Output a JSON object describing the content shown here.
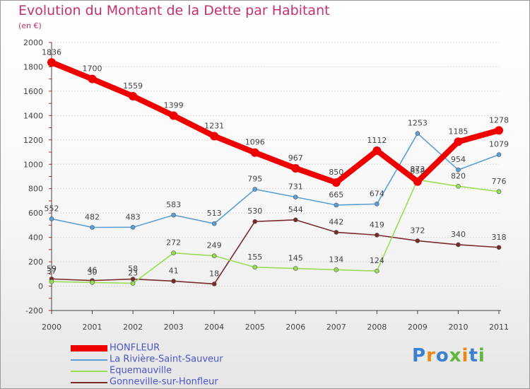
{
  "chart_data": {
    "type": "line",
    "title": "Evolution du Montant de la Dette par Habitant",
    "subtitle": "(en €)",
    "x": [
      "2000",
      "2001",
      "2002",
      "2003",
      "2004",
      "2005",
      "2006",
      "2007",
      "2008",
      "2009",
      "2010",
      "2011"
    ],
    "ylim": [
      -200,
      2000
    ],
    "yticks": [
      "-200",
      "0",
      "200",
      "400",
      "600",
      "800",
      "1000",
      "1200",
      "1400",
      "1600",
      "1800",
      "2000"
    ],
    "grid": "horizontal",
    "legend_position": "bottom-left",
    "series": [
      {
        "name": "HONFLEUR",
        "color": "#ee0000",
        "values": [
          1836,
          1700,
          1559,
          1399,
          1231,
          1096,
          967,
          850,
          1112,
          858,
          1185,
          1278
        ],
        "labels": [
          "1836",
          "1700",
          "1559",
          "1399",
          "1231",
          "1096",
          "967",
          "850",
          "1112",
          "858",
          "1185",
          "1278"
        ]
      },
      {
        "name": "La Rivière-Saint-Sauveur",
        "color": "#5b9fd4",
        "values": [
          552,
          482,
          483,
          583,
          513,
          795,
          731,
          665,
          674,
          1253,
          954,
          1079
        ],
        "labels": [
          "552",
          "482",
          "483",
          "583",
          "513",
          "795",
          "731",
          "665",
          "674",
          "1253",
          "954",
          "1079"
        ]
      },
      {
        "name": "Equemauville",
        "color": "#99dd55",
        "values": [
          37,
          30,
          23,
          272,
          249,
          155,
          145,
          134,
          124,
          873,
          820,
          776
        ],
        "labels": [
          "37",
          "30",
          "23",
          "272",
          "249",
          "155",
          "145",
          "134",
          "124",
          "873",
          "820",
          "776"
        ]
      },
      {
        "name": "Gonneville-sur-Honfleur",
        "color": "#7a2a2a",
        "values": [
          59,
          46,
          58,
          41,
          18,
          530,
          544,
          442,
          419,
          372,
          340,
          318
        ],
        "labels": [
          "59",
          "46",
          "58",
          "41",
          "18",
          "530",
          "544",
          "442",
          "419",
          "372",
          "340",
          "318"
        ]
      }
    ]
  },
  "logo": {
    "text": "Proxiti",
    "colors": [
      "#3a7fd0",
      "#e88a1a",
      "#3a7fd0",
      "#5fb83a",
      "#e88a1a",
      "#3a7fd0",
      "#5fb83a"
    ]
  },
  "colors": {
    "title": "#c6306f",
    "axis": "#444444",
    "grid": "#d9d9d9",
    "legend_text": "#4a56c8"
  }
}
